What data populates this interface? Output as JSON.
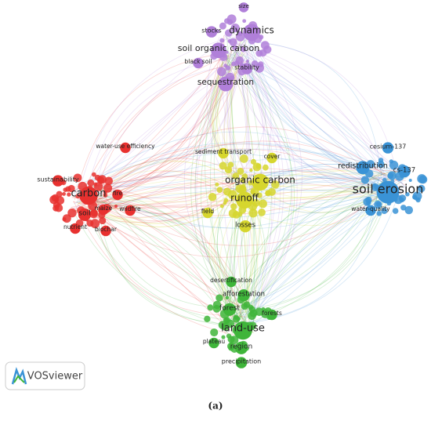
{
  "nodes": [
    {
      "label": "size"
    },
    {
      "label": "stocks"
    },
    {
      "label": "dynamics"
    },
    {
      "label": "soil organic carbon"
    },
    {
      "label": "black soil"
    },
    {
      "label": "stability"
    },
    {
      "label": "sequestration"
    },
    {
      "label": "cesium-137"
    },
    {
      "label": "redistribution"
    },
    {
      "label": "cs-137"
    },
    {
      "label": "soil erosion"
    },
    {
      "label": "water-quality"
    },
    {
      "label": "water-use efficiency"
    },
    {
      "label": "sustainability"
    },
    {
      "label": "carbon"
    },
    {
      "label": "fire"
    },
    {
      "label": "wildfire"
    },
    {
      "label": "soil"
    },
    {
      "label": "maize"
    },
    {
      "label": "nutrient"
    },
    {
      "label": "biochar"
    },
    {
      "label": "sediment transport"
    },
    {
      "label": "cover"
    },
    {
      "label": "organic carbon"
    },
    {
      "label": "runoff"
    },
    {
      "label": "field"
    },
    {
      "label": "losses"
    },
    {
      "label": "desertification"
    },
    {
      "label": "afforestation"
    },
    {
      "label": "forest"
    },
    {
      "label": "forests"
    },
    {
      "label": "land-use"
    },
    {
      "label": "plateau"
    },
    {
      "label": "region"
    },
    {
      "label": "precipitation"
    }
  ],
  "logo": "VOSviewer",
  "caption": "(a)"
}
